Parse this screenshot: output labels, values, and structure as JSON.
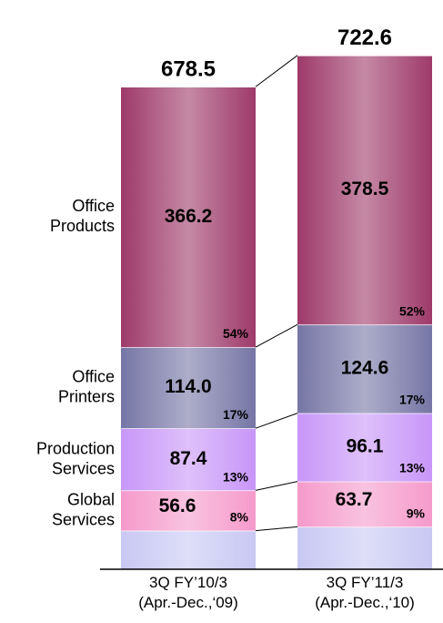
{
  "chart_data": {
    "type": "stacked_bar",
    "categories": [
      "3Q FY’10/3\n(Apr.-Dec.,‘09)",
      "3Q FY’11/3\n(Apr.-Dec.,‘10)"
    ],
    "totals": [
      678.5,
      722.6
    ],
    "series": [
      {
        "color": "#c8c8f4",
        "values": [
          54.3,
          59.7
        ]
      },
      {
        "name": "Global\nServices",
        "color": "#f59acb",
        "values": [
          56.6,
          63.7
        ],
        "shares": [
          8,
          9
        ]
      },
      {
        "name": "Production\nServices",
        "color": "#c896f8",
        "values": [
          87.4,
          96.1
        ],
        "shares": [
          13,
          13
        ]
      },
      {
        "name": "Office\nPrinters",
        "color": "#7676a6",
        "values": [
          114.0,
          124.6
        ],
        "value_labels": [
          "114.0",
          "124.6"
        ],
        "shares": [
          17,
          17
        ]
      },
      {
        "name": "Office\nProducts",
        "color": "#9e3a6a",
        "values": [
          366.2,
          378.5
        ],
        "shares": [
          54,
          52
        ]
      }
    ],
    "ylim": [
      0,
      780
    ]
  }
}
